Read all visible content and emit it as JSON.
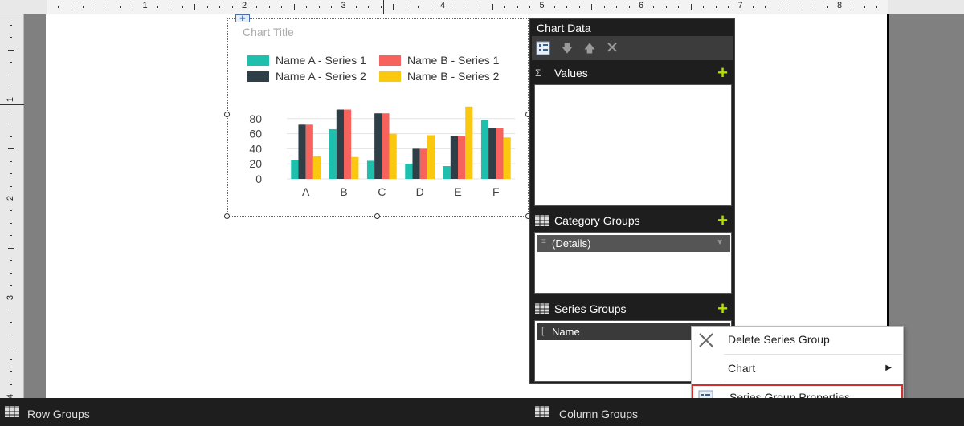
{
  "ruler": {
    "h_numbers": [
      "1",
      "2",
      "3",
      "4",
      "5",
      "6",
      "7",
      "8"
    ],
    "v_numbers": [
      "1",
      "2",
      "3",
      "4"
    ]
  },
  "chart": {
    "title": "Chart Title",
    "legend": [
      {
        "name": "Name A - Series 1",
        "color": "#1fbfae"
      },
      {
        "name": "Name B - Series 1",
        "color": "#f8625c"
      },
      {
        "name": "Name A - Series 2",
        "color": "#2f3f48"
      },
      {
        "name": "Name B - Series 2",
        "color": "#fbc810"
      }
    ]
  },
  "chart_data": {
    "type": "bar",
    "categories": [
      "A",
      "B",
      "C",
      "D",
      "E",
      "F"
    ],
    "series": [
      {
        "name": "Name A - Series 1",
        "color": "#1fbfae",
        "values": [
          25,
          66,
          24,
          20,
          17,
          78
        ]
      },
      {
        "name": "Name A - Series 2",
        "color": "#2f3f48",
        "values": [
          72,
          92,
          87,
          40,
          57,
          67
        ]
      },
      {
        "name": "Name B - Series 1",
        "color": "#f8625c",
        "values": [
          72,
          92,
          87,
          40,
          57,
          67
        ]
      },
      {
        "name": "Name B - Series 2",
        "color": "#fbc810",
        "values": [
          30,
          29,
          60,
          58,
          96,
          55
        ]
      }
    ],
    "yticks": [
      "0",
      "20",
      "40",
      "60",
      "80"
    ],
    "ylim": [
      0,
      100
    ],
    "title": "Chart Title",
    "grid": true,
    "legend_position": "top"
  },
  "chart_data_pane": {
    "title": "Chart Data",
    "values_label": "Values",
    "category_groups_label": "Category Groups",
    "category_item": "(Details)",
    "series_groups_label": "Series Groups",
    "series_item": "Name"
  },
  "context_menu": {
    "delete": "Delete Series Group",
    "chart": "Chart",
    "properties": "Series Group Properties..."
  },
  "bottom": {
    "row_groups": "Row Groups",
    "column_groups": "Column Groups"
  },
  "colors": {
    "accent_plus": "#b6e000",
    "highlight_border": "#d32f2f"
  }
}
